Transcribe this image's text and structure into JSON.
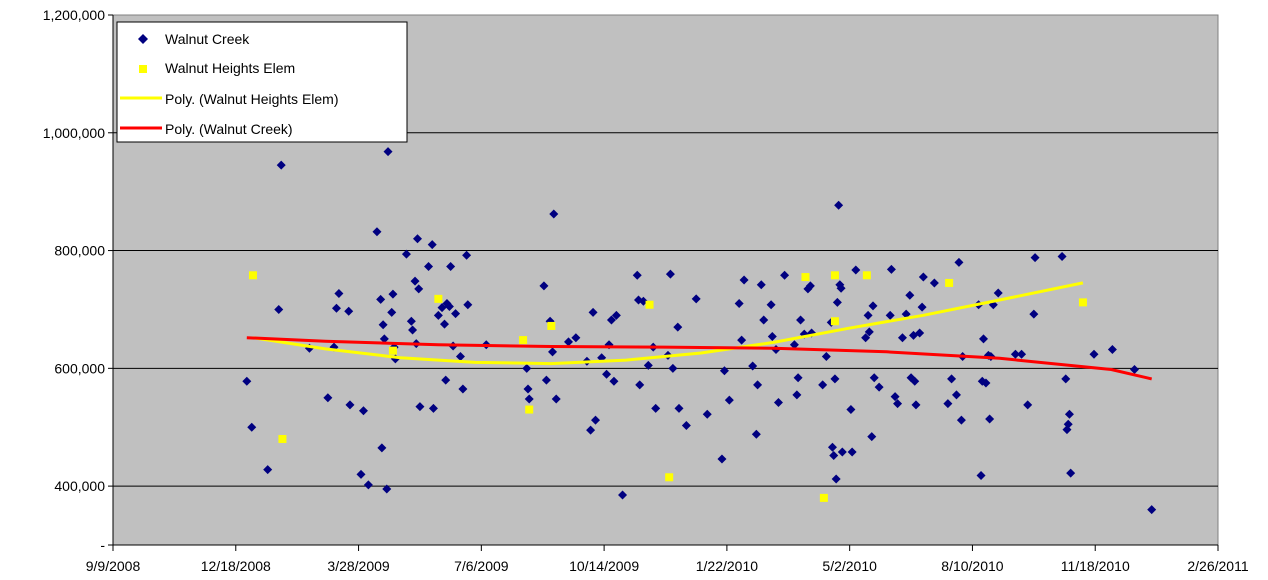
{
  "chart_data": {
    "type": "scatter",
    "colors": {
      "plot_bg": "#c0c0c0",
      "grid": "#000000",
      "walnut_creek": "#000080",
      "walnut_heights": "#ffff00",
      "poly_heights": "#ffff00",
      "poly_creek": "#ff0000"
    },
    "x_ticks": [
      "9/9/2008",
      "12/18/2008",
      "3/28/2009",
      "7/6/2009",
      "10/14/2009",
      "1/22/2010",
      "5/2/2010",
      "8/10/2010",
      "11/18/2010",
      "2/26/2011"
    ],
    "y_ticks": [
      "-",
      "400,000",
      "600,000",
      "800,000",
      "1,000,000",
      "1,200,000"
    ],
    "xlim": [
      "9/9/2008",
      "2/26/2011"
    ],
    "ylim": [
      300000,
      1200000
    ],
    "grid": "horizontal",
    "legend_position": "top-left",
    "legend": [
      "Walnut Creek",
      "Walnut Heights Elem",
      "Poly. (Walnut Heights Elem)",
      "Poly. (Walnut Creek)"
    ],
    "series": [
      {
        "name": "Walnut Creek",
        "marker": "diamond",
        "color": "#000080",
        "points": [
          [
            "2008-12-27",
            578000
          ],
          [
            "2008-12-31",
            500000
          ],
          [
            "2009-01-13",
            428000
          ],
          [
            "2009-01-22",
            700000
          ],
          [
            "2009-01-24",
            945000
          ],
          [
            "2009-02-16",
            634000
          ],
          [
            "2009-03-03",
            550000
          ],
          [
            "2009-03-08",
            636000
          ],
          [
            "2009-03-10",
            702000
          ],
          [
            "2009-03-12",
            727000
          ],
          [
            "2009-03-20",
            697000
          ],
          [
            "2009-03-21",
            538000
          ],
          [
            "2009-03-30",
            420000
          ],
          [
            "2009-04-01",
            528000
          ],
          [
            "2009-04-05",
            402000
          ],
          [
            "2009-04-12",
            832000
          ],
          [
            "2009-04-15",
            717000
          ],
          [
            "2009-04-16",
            465000
          ],
          [
            "2009-04-17",
            674000
          ],
          [
            "2009-04-18",
            650000
          ],
          [
            "2009-04-20",
            395000
          ],
          [
            "2009-04-21",
            968000
          ],
          [
            "2009-04-24",
            695000
          ],
          [
            "2009-04-25",
            726000
          ],
          [
            "2009-04-26",
            636000
          ],
          [
            "2009-04-27",
            616000
          ],
          [
            "2009-05-06",
            794000
          ],
          [
            "2009-05-10",
            680000
          ],
          [
            "2009-05-11",
            665000
          ],
          [
            "2009-05-13",
            748000
          ],
          [
            "2009-05-14",
            642000
          ],
          [
            "2009-05-15",
            820000
          ],
          [
            "2009-05-16",
            735000
          ],
          [
            "2009-05-17",
            535000
          ],
          [
            "2009-05-24",
            773000
          ],
          [
            "2009-05-27",
            810000
          ],
          [
            "2009-05-28",
            532000
          ],
          [
            "2009-06-01",
            690000
          ],
          [
            "2009-06-04",
            703000
          ],
          [
            "2009-06-06",
            675000
          ],
          [
            "2009-06-07",
            580000
          ],
          [
            "2009-06-08",
            710000
          ],
          [
            "2009-06-10",
            705000
          ],
          [
            "2009-06-11",
            773000
          ],
          [
            "2009-06-13",
            638000
          ],
          [
            "2009-06-15",
            693000
          ],
          [
            "2009-06-19",
            620000
          ],
          [
            "2009-06-21",
            565000
          ],
          [
            "2009-06-24",
            792000
          ],
          [
            "2009-06-25",
            708000
          ],
          [
            "2009-07-10",
            640000
          ],
          [
            "2009-08-12",
            600000
          ],
          [
            "2009-08-13",
            565000
          ],
          [
            "2009-08-14",
            548000
          ],
          [
            "2009-08-26",
            740000
          ],
          [
            "2009-08-28",
            580000
          ],
          [
            "2009-08-31",
            680000
          ],
          [
            "2009-09-02",
            628000
          ],
          [
            "2009-09-03",
            862000
          ],
          [
            "2009-09-05",
            548000
          ],
          [
            "2009-09-15",
            645000
          ],
          [
            "2009-09-21",
            652000
          ],
          [
            "2009-09-30",
            612000
          ],
          [
            "2009-10-03",
            495000
          ],
          [
            "2009-10-05",
            695000
          ],
          [
            "2009-10-07",
            512000
          ],
          [
            "2009-10-12",
            618000
          ],
          [
            "2009-10-16",
            590000
          ],
          [
            "2009-10-18",
            640000
          ],
          [
            "2009-10-20",
            682000
          ],
          [
            "2009-10-22",
            578000
          ],
          [
            "2009-10-24",
            690000
          ],
          [
            "2009-10-29",
            385000
          ],
          [
            "2009-11-10",
            758000
          ],
          [
            "2009-11-11",
            716000
          ],
          [
            "2009-11-12",
            572000
          ],
          [
            "2009-11-15",
            714000
          ],
          [
            "2009-11-19",
            605000
          ],
          [
            "2009-11-23",
            636000
          ],
          [
            "2009-11-25",
            532000
          ],
          [
            "2009-12-05",
            622000
          ],
          [
            "2009-12-07",
            760000
          ],
          [
            "2009-12-09",
            600000
          ],
          [
            "2009-12-13",
            670000
          ],
          [
            "2009-12-14",
            532000
          ],
          [
            "2009-12-20",
            503000
          ],
          [
            "2009-12-28",
            718000
          ],
          [
            "2010-01-06",
            522000
          ],
          [
            "2010-01-18",
            446000
          ],
          [
            "2010-01-20",
            596000
          ],
          [
            "2010-01-24",
            546000
          ],
          [
            "2010-02-01",
            710000
          ],
          [
            "2010-02-03",
            648000
          ],
          [
            "2010-02-05",
            750000
          ],
          [
            "2010-02-12",
            604000
          ],
          [
            "2010-02-15",
            488000
          ],
          [
            "2010-02-16",
            572000
          ],
          [
            "2010-02-19",
            742000
          ],
          [
            "2010-02-21",
            682000
          ],
          [
            "2010-02-27",
            708000
          ],
          [
            "2010-02-28",
            654000
          ],
          [
            "2010-03-03",
            632000
          ],
          [
            "2010-03-05",
            542000
          ],
          [
            "2010-03-10",
            758000
          ],
          [
            "2010-03-18",
            640000
          ],
          [
            "2010-03-20",
            555000
          ],
          [
            "2010-03-21",
            584000
          ],
          [
            "2010-03-23",
            682000
          ],
          [
            "2010-03-26",
            658000
          ],
          [
            "2010-03-29",
            735000
          ],
          [
            "2010-03-31",
            740000
          ],
          [
            "2010-04-01",
            660000
          ],
          [
            "2010-04-10",
            572000
          ],
          [
            "2010-04-13",
            620000
          ],
          [
            "2010-04-17",
            678000
          ],
          [
            "2010-04-18",
            466000
          ],
          [
            "2010-04-19",
            452000
          ],
          [
            "2010-04-20",
            582000
          ],
          [
            "2010-04-21",
            412000
          ],
          [
            "2010-04-22",
            712000
          ],
          [
            "2010-04-23",
            877000
          ],
          [
            "2010-04-24",
            742000
          ],
          [
            "2010-04-25",
            736000
          ],
          [
            "2010-04-26",
            458000
          ],
          [
            "2010-05-03",
            530000
          ],
          [
            "2010-05-04",
            458000
          ],
          [
            "2010-05-07",
            767000
          ],
          [
            "2010-05-15",
            652000
          ],
          [
            "2010-05-17",
            690000
          ],
          [
            "2010-05-18",
            662000
          ],
          [
            "2010-05-20",
            484000
          ],
          [
            "2010-05-21",
            706000
          ],
          [
            "2010-05-22",
            584000
          ],
          [
            "2010-05-26",
            568000
          ],
          [
            "2010-06-04",
            690000
          ],
          [
            "2010-06-05",
            768000
          ],
          [
            "2010-06-08",
            552000
          ],
          [
            "2010-06-10",
            540000
          ],
          [
            "2010-06-14",
            652000
          ],
          [
            "2010-06-17",
            692000
          ],
          [
            "2010-06-20",
            724000
          ],
          [
            "2010-06-21",
            584000
          ],
          [
            "2010-06-23",
            656000
          ],
          [
            "2010-06-24",
            578000
          ],
          [
            "2010-06-25",
            538000
          ],
          [
            "2010-06-28",
            660000
          ],
          [
            "2010-06-30",
            704000
          ],
          [
            "2010-07-01",
            755000
          ],
          [
            "2010-07-10",
            745000
          ],
          [
            "2010-07-21",
            540000
          ],
          [
            "2010-07-24",
            582000
          ],
          [
            "2010-07-28",
            555000
          ],
          [
            "2010-07-30",
            780000
          ],
          [
            "2010-08-01",
            512000
          ],
          [
            "2010-08-02",
            620000
          ],
          [
            "2010-08-15",
            708000
          ],
          [
            "2010-08-17",
            418000
          ],
          [
            "2010-08-18",
            578000
          ],
          [
            "2010-08-19",
            650000
          ],
          [
            "2010-08-21",
            575000
          ],
          [
            "2010-08-23",
            622000
          ],
          [
            "2010-08-24",
            514000
          ],
          [
            "2010-08-25",
            620000
          ],
          [
            "2010-08-27",
            708000
          ],
          [
            "2010-08-31",
            728000
          ],
          [
            "2010-09-14",
            624000
          ],
          [
            "2010-09-19",
            624000
          ],
          [
            "2010-09-24",
            538000
          ],
          [
            "2010-09-29",
            692000
          ],
          [
            "2010-09-30",
            788000
          ],
          [
            "2010-10-22",
            790000
          ],
          [
            "2010-10-25",
            582000
          ],
          [
            "2010-10-26",
            496000
          ],
          [
            "2010-10-27",
            505000
          ],
          [
            "2010-10-28",
            522000
          ],
          [
            "2010-10-29",
            422000
          ],
          [
            "2010-11-17",
            624000
          ],
          [
            "2010-12-02",
            632000
          ],
          [
            "2010-12-20",
            598000
          ],
          [
            "2011-01-03",
            360000
          ]
        ]
      },
      {
        "name": "Walnut Heights Elem",
        "marker": "square",
        "color": "#ffff00",
        "points": [
          [
            "2009-01-01",
            758000
          ],
          [
            "2009-01-25",
            480000
          ],
          [
            "2009-04-25",
            630000
          ],
          [
            "2009-06-01",
            718000
          ],
          [
            "2009-08-09",
            648000
          ],
          [
            "2009-08-14",
            530000
          ],
          [
            "2009-09-01",
            672000
          ],
          [
            "2009-11-20",
            708000
          ],
          [
            "2009-12-06",
            415000
          ],
          [
            "2010-03-27",
            755000
          ],
          [
            "2010-04-11",
            380000
          ],
          [
            "2010-04-20",
            758000
          ],
          [
            "2010-04-20",
            680000
          ],
          [
            "2010-05-16",
            758000
          ],
          [
            "2010-07-22",
            745000
          ],
          [
            "2010-11-08",
            712000
          ]
        ]
      },
      {
        "name": "Poly. (Walnut Heights Elem)",
        "type": "line",
        "color": "#ffff00",
        "points": [
          [
            "2009-01-01",
            652000
          ],
          [
            "2009-03-01",
            633000
          ],
          [
            "2009-05-01",
            618000
          ],
          [
            "2009-07-01",
            610000
          ],
          [
            "2009-09-01",
            608000
          ],
          [
            "2009-11-01",
            614000
          ],
          [
            "2010-01-01",
            626000
          ],
          [
            "2010-03-01",
            644000
          ],
          [
            "2010-05-01",
            668000
          ],
          [
            "2010-07-01",
            690000
          ],
          [
            "2010-09-01",
            716000
          ],
          [
            "2010-11-08",
            745000
          ]
        ]
      },
      {
        "name": "Poly. (Walnut Creek)",
        "type": "line",
        "color": "#ff0000",
        "points": [
          [
            "2008-12-27",
            652000
          ],
          [
            "2009-03-01",
            646000
          ],
          [
            "2009-06-01",
            640000
          ],
          [
            "2009-09-01",
            637000
          ],
          [
            "2009-12-01",
            636000
          ],
          [
            "2010-03-01",
            634000
          ],
          [
            "2010-06-01",
            628000
          ],
          [
            "2010-09-01",
            617000
          ],
          [
            "2010-12-01",
            598000
          ],
          [
            "2011-01-03",
            582000
          ]
        ]
      }
    ]
  }
}
